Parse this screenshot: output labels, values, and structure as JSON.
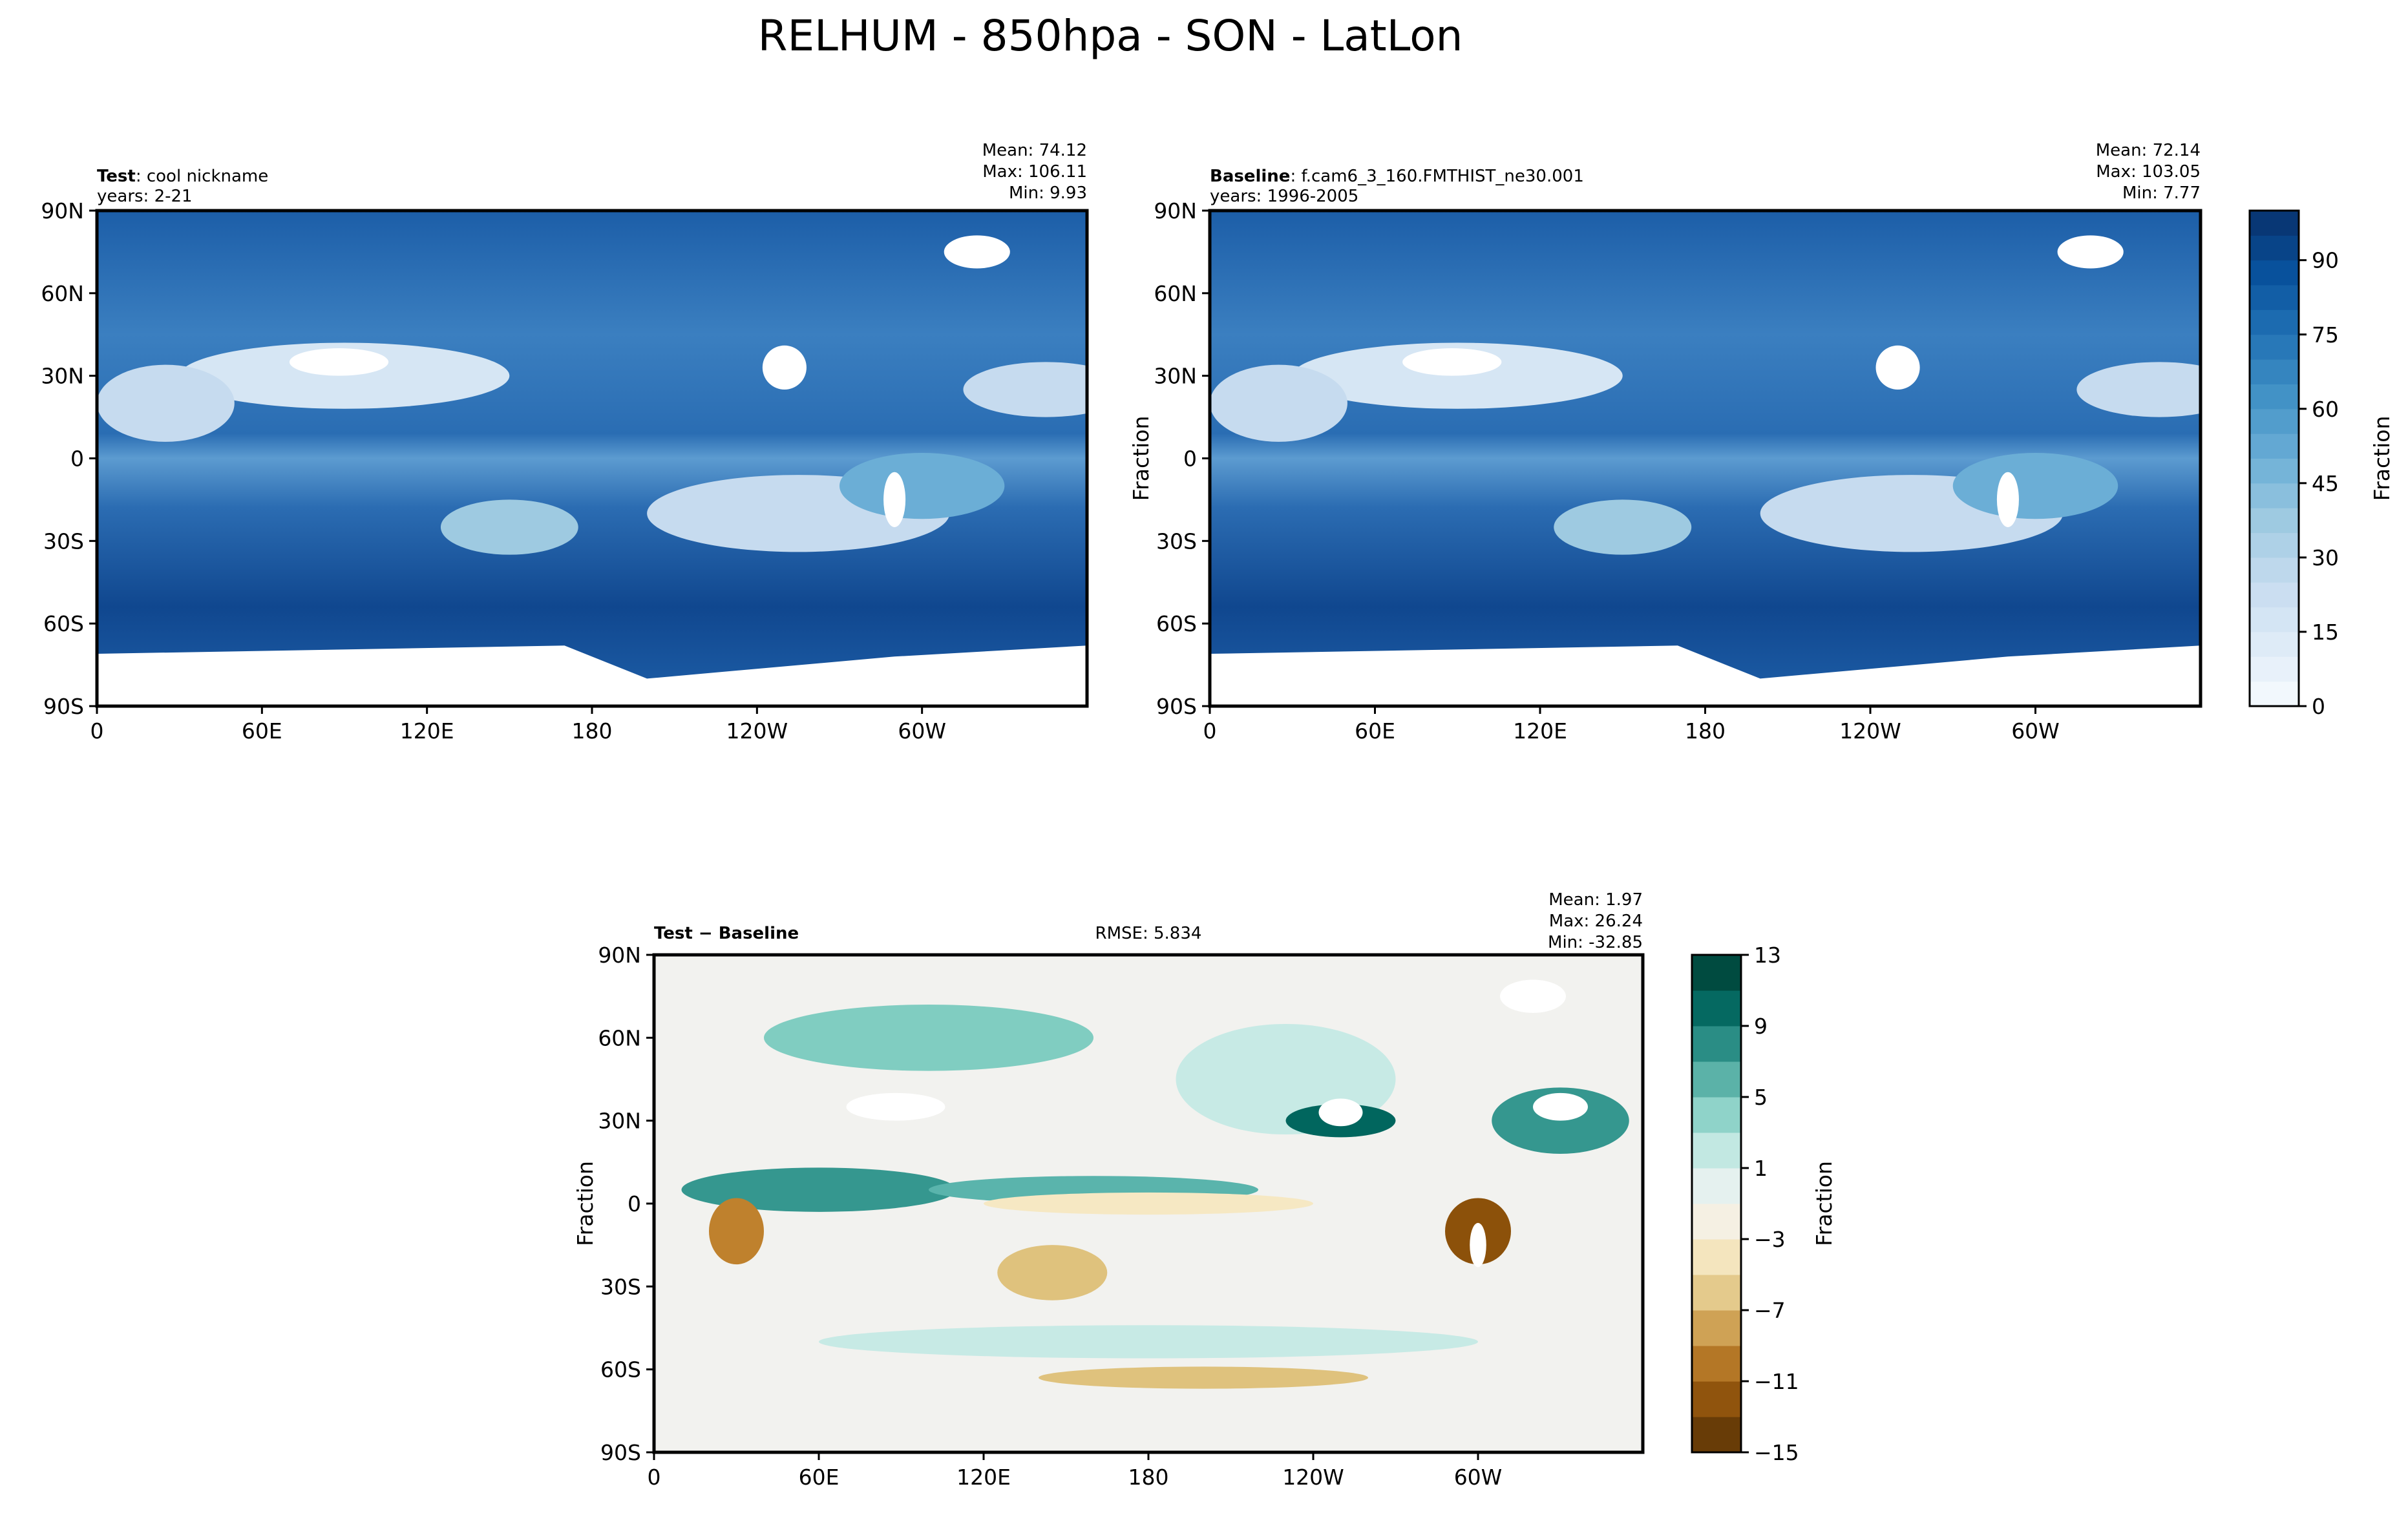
{
  "title": "RELHUM - 850hpa - SON - LatLon",
  "chart_data": [
    {
      "type": "heatmap",
      "panel": "test",
      "label_bold": "Test",
      "label_rest": ": cool nickname",
      "years": "years: 2-21",
      "stats": {
        "mean": "Mean: 74.12",
        "max": "Max: 106.11",
        "min": "Min:  9.93"
      },
      "ylabel": "",
      "yticks": [
        "90N",
        "60N",
        "30N",
        "0",
        "30S",
        "60S",
        "90S"
      ],
      "xticks": [
        "0",
        "60E",
        "120E",
        "180",
        "120W",
        "60W"
      ],
      "colormap": "Blues"
    },
    {
      "type": "heatmap",
      "panel": "baseline",
      "label_bold": "Baseline",
      "label_rest": ": f.cam6_3_160.FMTHIST_ne30.001",
      "years": "years: 1996-2005",
      "stats": {
        "mean": "Mean: 72.14",
        "max": "Max: 103.05",
        "min": "Min:  7.77"
      },
      "ylabel": "Fraction",
      "yticks": [
        "90N",
        "60N",
        "30N",
        "0",
        "30S",
        "60S",
        "90S"
      ],
      "xticks": [
        "0",
        "60E",
        "120E",
        "180",
        "120W",
        "60W"
      ],
      "colormap": "Blues",
      "colorbar": {
        "label": "Fraction",
        "range": [
          0,
          100
        ],
        "step": 5,
        "ticks": [
          "0",
          "15",
          "30",
          "45",
          "60",
          "75",
          "90"
        ],
        "tick_values": [
          0,
          15,
          30,
          45,
          60,
          75,
          90
        ]
      }
    },
    {
      "type": "heatmap",
      "panel": "difference",
      "label_bold": "Test − Baseline",
      "rmse": "RMSE: 5.834",
      "stats": {
        "mean": "Mean:  1.97",
        "max": "Max: 26.24",
        "min": "Min: -32.85"
      },
      "ylabel": "Fraction",
      "yticks": [
        "90N",
        "60N",
        "30N",
        "0",
        "30S",
        "60S",
        "90S"
      ],
      "xticks": [
        "0",
        "60E",
        "120E",
        "180",
        "120W",
        "60W"
      ],
      "colormap": "BrBG",
      "colorbar": {
        "label": "Fraction",
        "range": [
          -15,
          13
        ],
        "step": 2,
        "ticks": [
          "−15",
          "−11",
          "−7",
          "−3",
          "1",
          "5",
          "9",
          "13"
        ],
        "tick_values": [
          -15,
          -11,
          -7,
          -3,
          1,
          5,
          9,
          13
        ]
      }
    }
  ]
}
